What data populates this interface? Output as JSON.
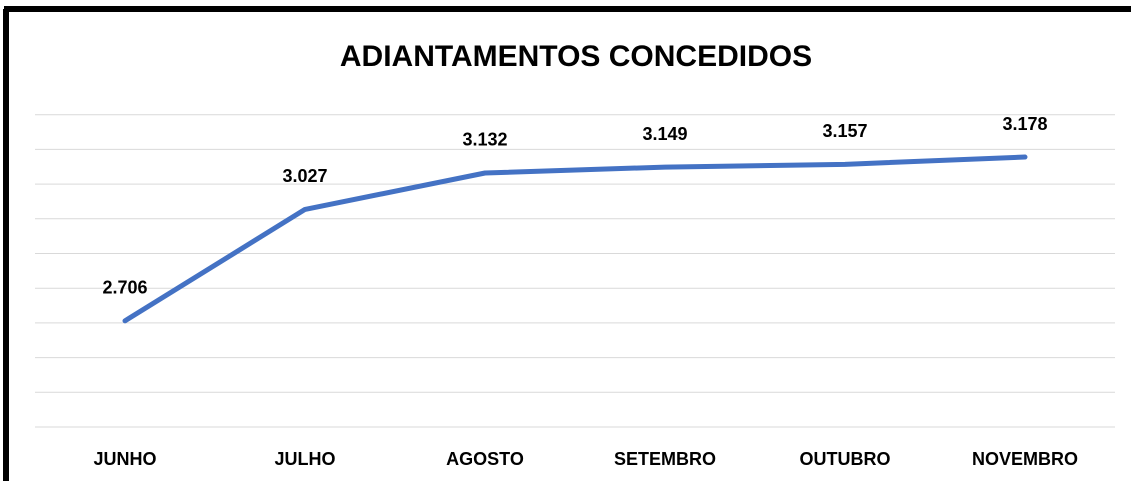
{
  "chart_data": {
    "type": "line",
    "title": "ADIANTAMENTOS CONCEDIDOS",
    "categories": [
      "JUNHO",
      "JULHO",
      "AGOSTO",
      "SETEMBRO",
      "OUTUBRO",
      "NOVEMBRO"
    ],
    "values": [
      2706,
      3027,
      3132,
      3149,
      3157,
      3178
    ],
    "value_labels": [
      "2.706",
      "3.027",
      "3.132",
      "3.149",
      "3.157",
      "3.178"
    ],
    "color": "#4472c4",
    "ylim": [
      2400,
      3300
    ],
    "yticks": [
      2400,
      2500,
      2600,
      2700,
      2800,
      2900,
      3000,
      3100,
      3200,
      3300
    ],
    "grid": true
  }
}
